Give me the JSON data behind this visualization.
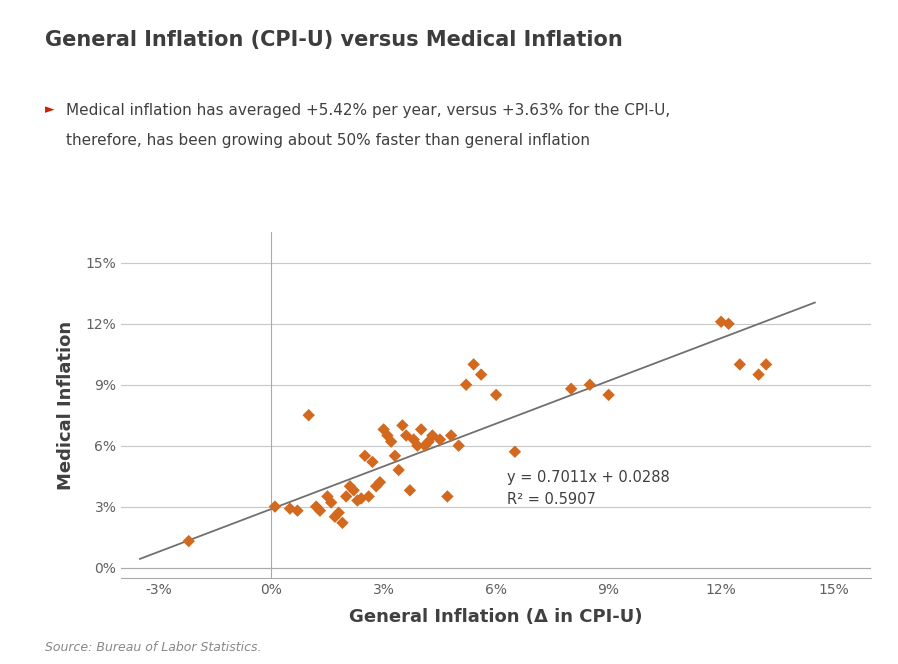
{
  "title": "General Inflation (CPI-U) versus Medical Inflation",
  "xlabel": "General Inflation (Δ in CPI-U)",
  "ylabel": "Medical Inflation",
  "bullet_text1": "► Medical inflation has averaged +5.42% per year, versus +3.63% for the CPI-U,",
  "bullet_text2": "    therefore, has been growing about 50% faster than general inflation",
  "source_text": "Source: Bureau of Labor Statistics.",
  "equation_text": "y = 0.7011x + 0.0288",
  "r2_text": "R² = 0.5907",
  "scatter_color": "#D2691E",
  "line_color": "#707070",
  "background_color": "#FFFFFF",
  "title_color": "#3D3D3D",
  "axis_label_color": "#404040",
  "tick_color": "#606060",
  "bullet_color": "#CC2200",
  "text_color": "#404040",
  "x_data": [
    -0.022,
    0.001,
    0.005,
    0.007,
    0.01,
    0.012,
    0.013,
    0.015,
    0.016,
    0.017,
    0.018,
    0.019,
    0.02,
    0.021,
    0.022,
    0.023,
    0.024,
    0.025,
    0.026,
    0.027,
    0.028,
    0.029,
    0.03,
    0.031,
    0.032,
    0.033,
    0.034,
    0.035,
    0.036,
    0.037,
    0.038,
    0.039,
    0.04,
    0.041,
    0.042,
    0.043,
    0.045,
    0.047,
    0.048,
    0.05,
    0.052,
    0.054,
    0.056,
    0.06,
    0.065,
    0.08,
    0.085,
    0.09,
    0.12,
    0.122,
    0.125,
    0.13,
    0.132
  ],
  "y_data": [
    0.013,
    0.03,
    0.029,
    0.028,
    0.075,
    0.03,
    0.028,
    0.035,
    0.032,
    0.025,
    0.027,
    0.022,
    0.035,
    0.04,
    0.038,
    0.033,
    0.034,
    0.055,
    0.035,
    0.052,
    0.04,
    0.042,
    0.068,
    0.065,
    0.062,
    0.055,
    0.048,
    0.07,
    0.065,
    0.038,
    0.063,
    0.06,
    0.068,
    0.06,
    0.062,
    0.065,
    0.063,
    0.035,
    0.065,
    0.06,
    0.09,
    0.1,
    0.095,
    0.085,
    0.057,
    0.088,
    0.09,
    0.085,
    0.121,
    0.12,
    0.1,
    0.095,
    0.1
  ],
  "xlim": [
    -0.04,
    0.16
  ],
  "ylim": [
    -0.005,
    0.165
  ],
  "xticks": [
    -0.03,
    0.0,
    0.03,
    0.06,
    0.09,
    0.12,
    0.15
  ],
  "yticks": [
    0.0,
    0.03,
    0.06,
    0.09,
    0.12,
    0.15
  ],
  "xticklabels": [
    "-3%",
    "0%",
    "3%",
    "6%",
    "9%",
    "12%",
    "15%"
  ],
  "yticklabels": [
    "0%",
    "3%",
    "6%",
    "9%",
    "12%",
    "15%"
  ],
  "regression_slope": 0.7011,
  "regression_intercept": 0.0288,
  "line_x_start": -0.035,
  "line_x_end": 0.145
}
